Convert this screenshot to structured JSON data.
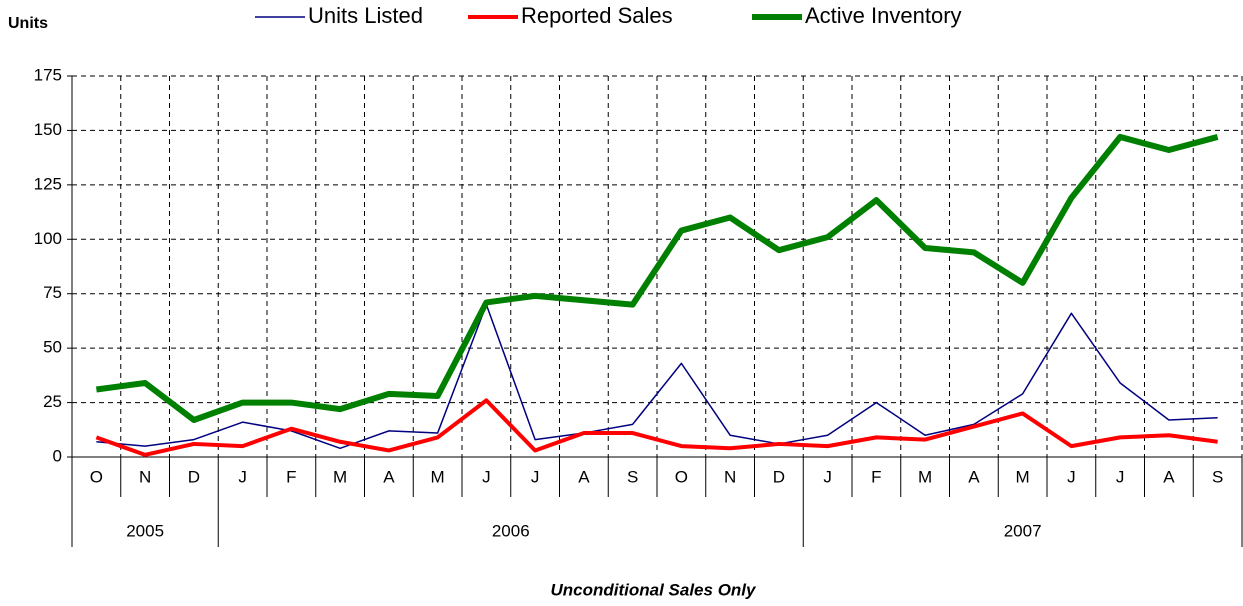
{
  "chart_data": {
    "type": "line",
    "y_label": "Units",
    "subtitle": "Unconditional Sales Only",
    "categories": [
      "O",
      "N",
      "D",
      "J",
      "F",
      "M",
      "A",
      "M",
      "J",
      "J",
      "A",
      "S",
      "O",
      "N",
      "D",
      "J",
      "F",
      "M",
      "A",
      "M",
      "J",
      "J",
      "A",
      "S"
    ],
    "category_groups": [
      {
        "label": "2005",
        "count": 3
      },
      {
        "label": "2006",
        "count": 12
      },
      {
        "label": "2007",
        "count": 9
      }
    ],
    "series": [
      {
        "name": "Units Listed",
        "color": "#000080",
        "width": 1.5,
        "values": [
          7,
          5,
          8,
          16,
          12,
          4,
          12,
          11,
          70,
          8,
          11,
          15,
          43,
          10,
          6,
          10,
          25,
          10,
          15,
          29,
          66,
          34,
          17,
          18
        ]
      },
      {
        "name": "Reported Sales",
        "color": "#ff0000",
        "width": 4,
        "values": [
          9,
          1,
          6,
          5,
          13,
          7,
          3,
          9,
          26,
          3,
          11,
          11,
          5,
          4,
          6,
          5,
          9,
          8,
          14,
          20,
          5,
          9,
          10,
          7
        ]
      },
      {
        "name": "Active Inventory",
        "color": "#008000",
        "width": 6,
        "values": [
          31,
          34,
          17,
          25,
          25,
          22,
          29,
          28,
          71,
          74,
          72,
          70,
          104,
          110,
          95,
          101,
          118,
          96,
          94,
          80,
          119,
          147,
          141,
          147
        ]
      }
    ],
    "ylim": [
      0,
      175
    ],
    "yticks": [
      0,
      25,
      50,
      75,
      100,
      125,
      150,
      175
    ],
    "grid": true
  }
}
